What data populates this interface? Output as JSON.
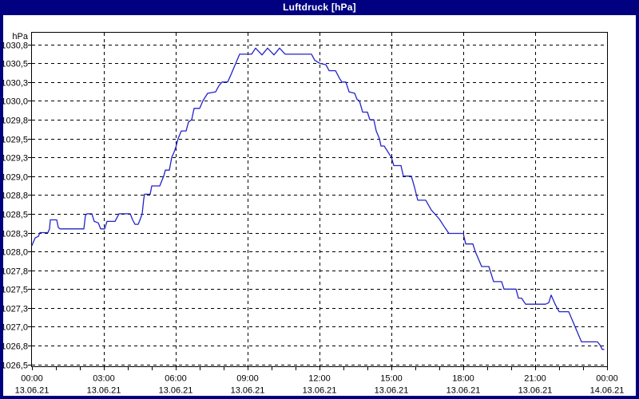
{
  "window": {
    "title": "Luftdruck [hPa]"
  },
  "colors": {
    "chrome": "#000080",
    "title_text": "#ffffff",
    "line": "#2323c8",
    "grid": "#000000",
    "axis_text": "#000000",
    "plot_background": "#ffffff"
  },
  "chart_data": {
    "type": "line",
    "title": "Luftdruck [hPa]",
    "ylabel": "hPa",
    "legend_position": "none",
    "grid": "dashed",
    "xlim_minutes": [
      0,
      1440
    ],
    "x_minor_tick_minutes": 60,
    "x_major_ticks": [
      {
        "minutes": 0,
        "time": "00:00",
        "date": "13.06.21"
      },
      {
        "minutes": 180,
        "time": "03:00",
        "date": "13.06.21"
      },
      {
        "minutes": 360,
        "time": "06:00",
        "date": "13.06.21"
      },
      {
        "minutes": 540,
        "time": "09:00",
        "date": "13.06.21"
      },
      {
        "minutes": 720,
        "time": "12:00",
        "date": "13.06.21"
      },
      {
        "minutes": 900,
        "time": "15:00",
        "date": "13.06.21"
      },
      {
        "minutes": 1080,
        "time": "18:00",
        "date": "13.06.21"
      },
      {
        "minutes": 1260,
        "time": "21:00",
        "date": "13.06.21"
      },
      {
        "minutes": 1440,
        "time": "00:00",
        "date": "14.06.21"
      }
    ],
    "ylim": [
      1026.47,
      1030.91
    ],
    "y_ticks": [
      {
        "value": 1030.75,
        "label": "1030,8"
      },
      {
        "value": 1030.5,
        "label": "1030,5"
      },
      {
        "value": 1030.25,
        "label": "1030,3"
      },
      {
        "value": 1030.0,
        "label": "1030,0"
      },
      {
        "value": 1029.75,
        "label": "1029,8"
      },
      {
        "value": 1029.5,
        "label": "1029,5"
      },
      {
        "value": 1029.25,
        "label": "1029,3"
      },
      {
        "value": 1029.0,
        "label": "1029,0"
      },
      {
        "value": 1028.75,
        "label": "1028,8"
      },
      {
        "value": 1028.5,
        "label": "1028,5"
      },
      {
        "value": 1028.25,
        "label": "1028,3"
      },
      {
        "value": 1028.0,
        "label": "1028,0"
      },
      {
        "value": 1027.75,
        "label": "1027,8"
      },
      {
        "value": 1027.5,
        "label": "1027,5"
      },
      {
        "value": 1027.25,
        "label": "1027,3"
      },
      {
        "value": 1027.0,
        "label": "1027,0"
      },
      {
        "value": 1026.75,
        "label": "1026,8"
      },
      {
        "value": 1026.5,
        "label": "1026,5"
      }
    ],
    "series": [
      {
        "name": "Luftdruck",
        "color": "#2323c8",
        "points_minutes_hpa": [
          [
            0,
            1028.08
          ],
          [
            8,
            1028.18
          ],
          [
            16,
            1028.2
          ],
          [
            20,
            1028.25
          ],
          [
            40,
            1028.25
          ],
          [
            44,
            1028.3
          ],
          [
            46,
            1028.42
          ],
          [
            62,
            1028.42
          ],
          [
            66,
            1028.32
          ],
          [
            70,
            1028.3
          ],
          [
            130,
            1028.3
          ],
          [
            134,
            1028.48
          ],
          [
            138,
            1028.5
          ],
          [
            150,
            1028.5
          ],
          [
            156,
            1028.4
          ],
          [
            166,
            1028.38
          ],
          [
            172,
            1028.3
          ],
          [
            182,
            1028.3
          ],
          [
            188,
            1028.4
          ],
          [
            208,
            1028.4
          ],
          [
            214,
            1028.46
          ],
          [
            218,
            1028.5
          ],
          [
            246,
            1028.5
          ],
          [
            252,
            1028.42
          ],
          [
            258,
            1028.36
          ],
          [
            266,
            1028.36
          ],
          [
            272,
            1028.44
          ],
          [
            276,
            1028.5
          ],
          [
            280,
            1028.7
          ],
          [
            282,
            1028.76
          ],
          [
            296,
            1028.76
          ],
          [
            300,
            1028.87
          ],
          [
            320,
            1028.87
          ],
          [
            326,
            1028.95
          ],
          [
            330,
            1029.0
          ],
          [
            334,
            1029.08
          ],
          [
            344,
            1029.08
          ],
          [
            350,
            1029.25
          ],
          [
            356,
            1029.32
          ],
          [
            360,
            1029.38
          ],
          [
            366,
            1029.5
          ],
          [
            374,
            1029.6
          ],
          [
            386,
            1029.6
          ],
          [
            392,
            1029.72
          ],
          [
            400,
            1029.75
          ],
          [
            406,
            1029.9
          ],
          [
            420,
            1029.9
          ],
          [
            428,
            1030.0
          ],
          [
            440,
            1030.1
          ],
          [
            460,
            1030.12
          ],
          [
            468,
            1030.2
          ],
          [
            476,
            1030.25
          ],
          [
            490,
            1030.25
          ],
          [
            496,
            1030.32
          ],
          [
            520,
            1030.62
          ],
          [
            550,
            1030.62
          ],
          [
            560,
            1030.7
          ],
          [
            576,
            1030.61
          ],
          [
            590,
            1030.7
          ],
          [
            606,
            1030.61
          ],
          [
            620,
            1030.7
          ],
          [
            634,
            1030.62
          ],
          [
            700,
            1030.62
          ],
          [
            708,
            1030.54
          ],
          [
            720,
            1030.5
          ],
          [
            736,
            1030.48
          ],
          [
            744,
            1030.4
          ],
          [
            760,
            1030.4
          ],
          [
            770,
            1030.3
          ],
          [
            776,
            1030.25
          ],
          [
            786,
            1030.25
          ],
          [
            794,
            1030.12
          ],
          [
            808,
            1030.1
          ],
          [
            814,
            1030.02
          ],
          [
            820,
            1030.0
          ],
          [
            828,
            1029.85
          ],
          [
            840,
            1029.85
          ],
          [
            846,
            1029.75
          ],
          [
            856,
            1029.75
          ],
          [
            862,
            1029.6
          ],
          [
            870,
            1029.5
          ],
          [
            874,
            1029.4
          ],
          [
            882,
            1029.4
          ],
          [
            900,
            1029.25
          ],
          [
            906,
            1029.14
          ],
          [
            924,
            1029.14
          ],
          [
            930,
            1029.0
          ],
          [
            950,
            1029.0
          ],
          [
            958,
            1028.85
          ],
          [
            966,
            1028.68
          ],
          [
            986,
            1028.68
          ],
          [
            1000,
            1028.55
          ],
          [
            1020,
            1028.43
          ],
          [
            1036,
            1028.3
          ],
          [
            1044,
            1028.24
          ],
          [
            1080,
            1028.24
          ],
          [
            1086,
            1028.1
          ],
          [
            1104,
            1028.1
          ],
          [
            1110,
            1028.0
          ],
          [
            1126,
            1027.8
          ],
          [
            1144,
            1027.8
          ],
          [
            1156,
            1027.6
          ],
          [
            1176,
            1027.6
          ],
          [
            1182,
            1027.5
          ],
          [
            1212,
            1027.5
          ],
          [
            1218,
            1027.38
          ],
          [
            1226,
            1027.38
          ],
          [
            1236,
            1027.3
          ],
          [
            1286,
            1027.3
          ],
          [
            1294,
            1027.32
          ],
          [
            1300,
            1027.42
          ],
          [
            1310,
            1027.3
          ],
          [
            1320,
            1027.2
          ],
          [
            1344,
            1027.2
          ],
          [
            1356,
            1027.05
          ],
          [
            1364,
            1026.95
          ],
          [
            1376,
            1026.8
          ],
          [
            1416,
            1026.8
          ],
          [
            1422,
            1026.76
          ],
          [
            1428,
            1026.7
          ],
          [
            1432,
            1026.7
          ]
        ]
      }
    ]
  }
}
